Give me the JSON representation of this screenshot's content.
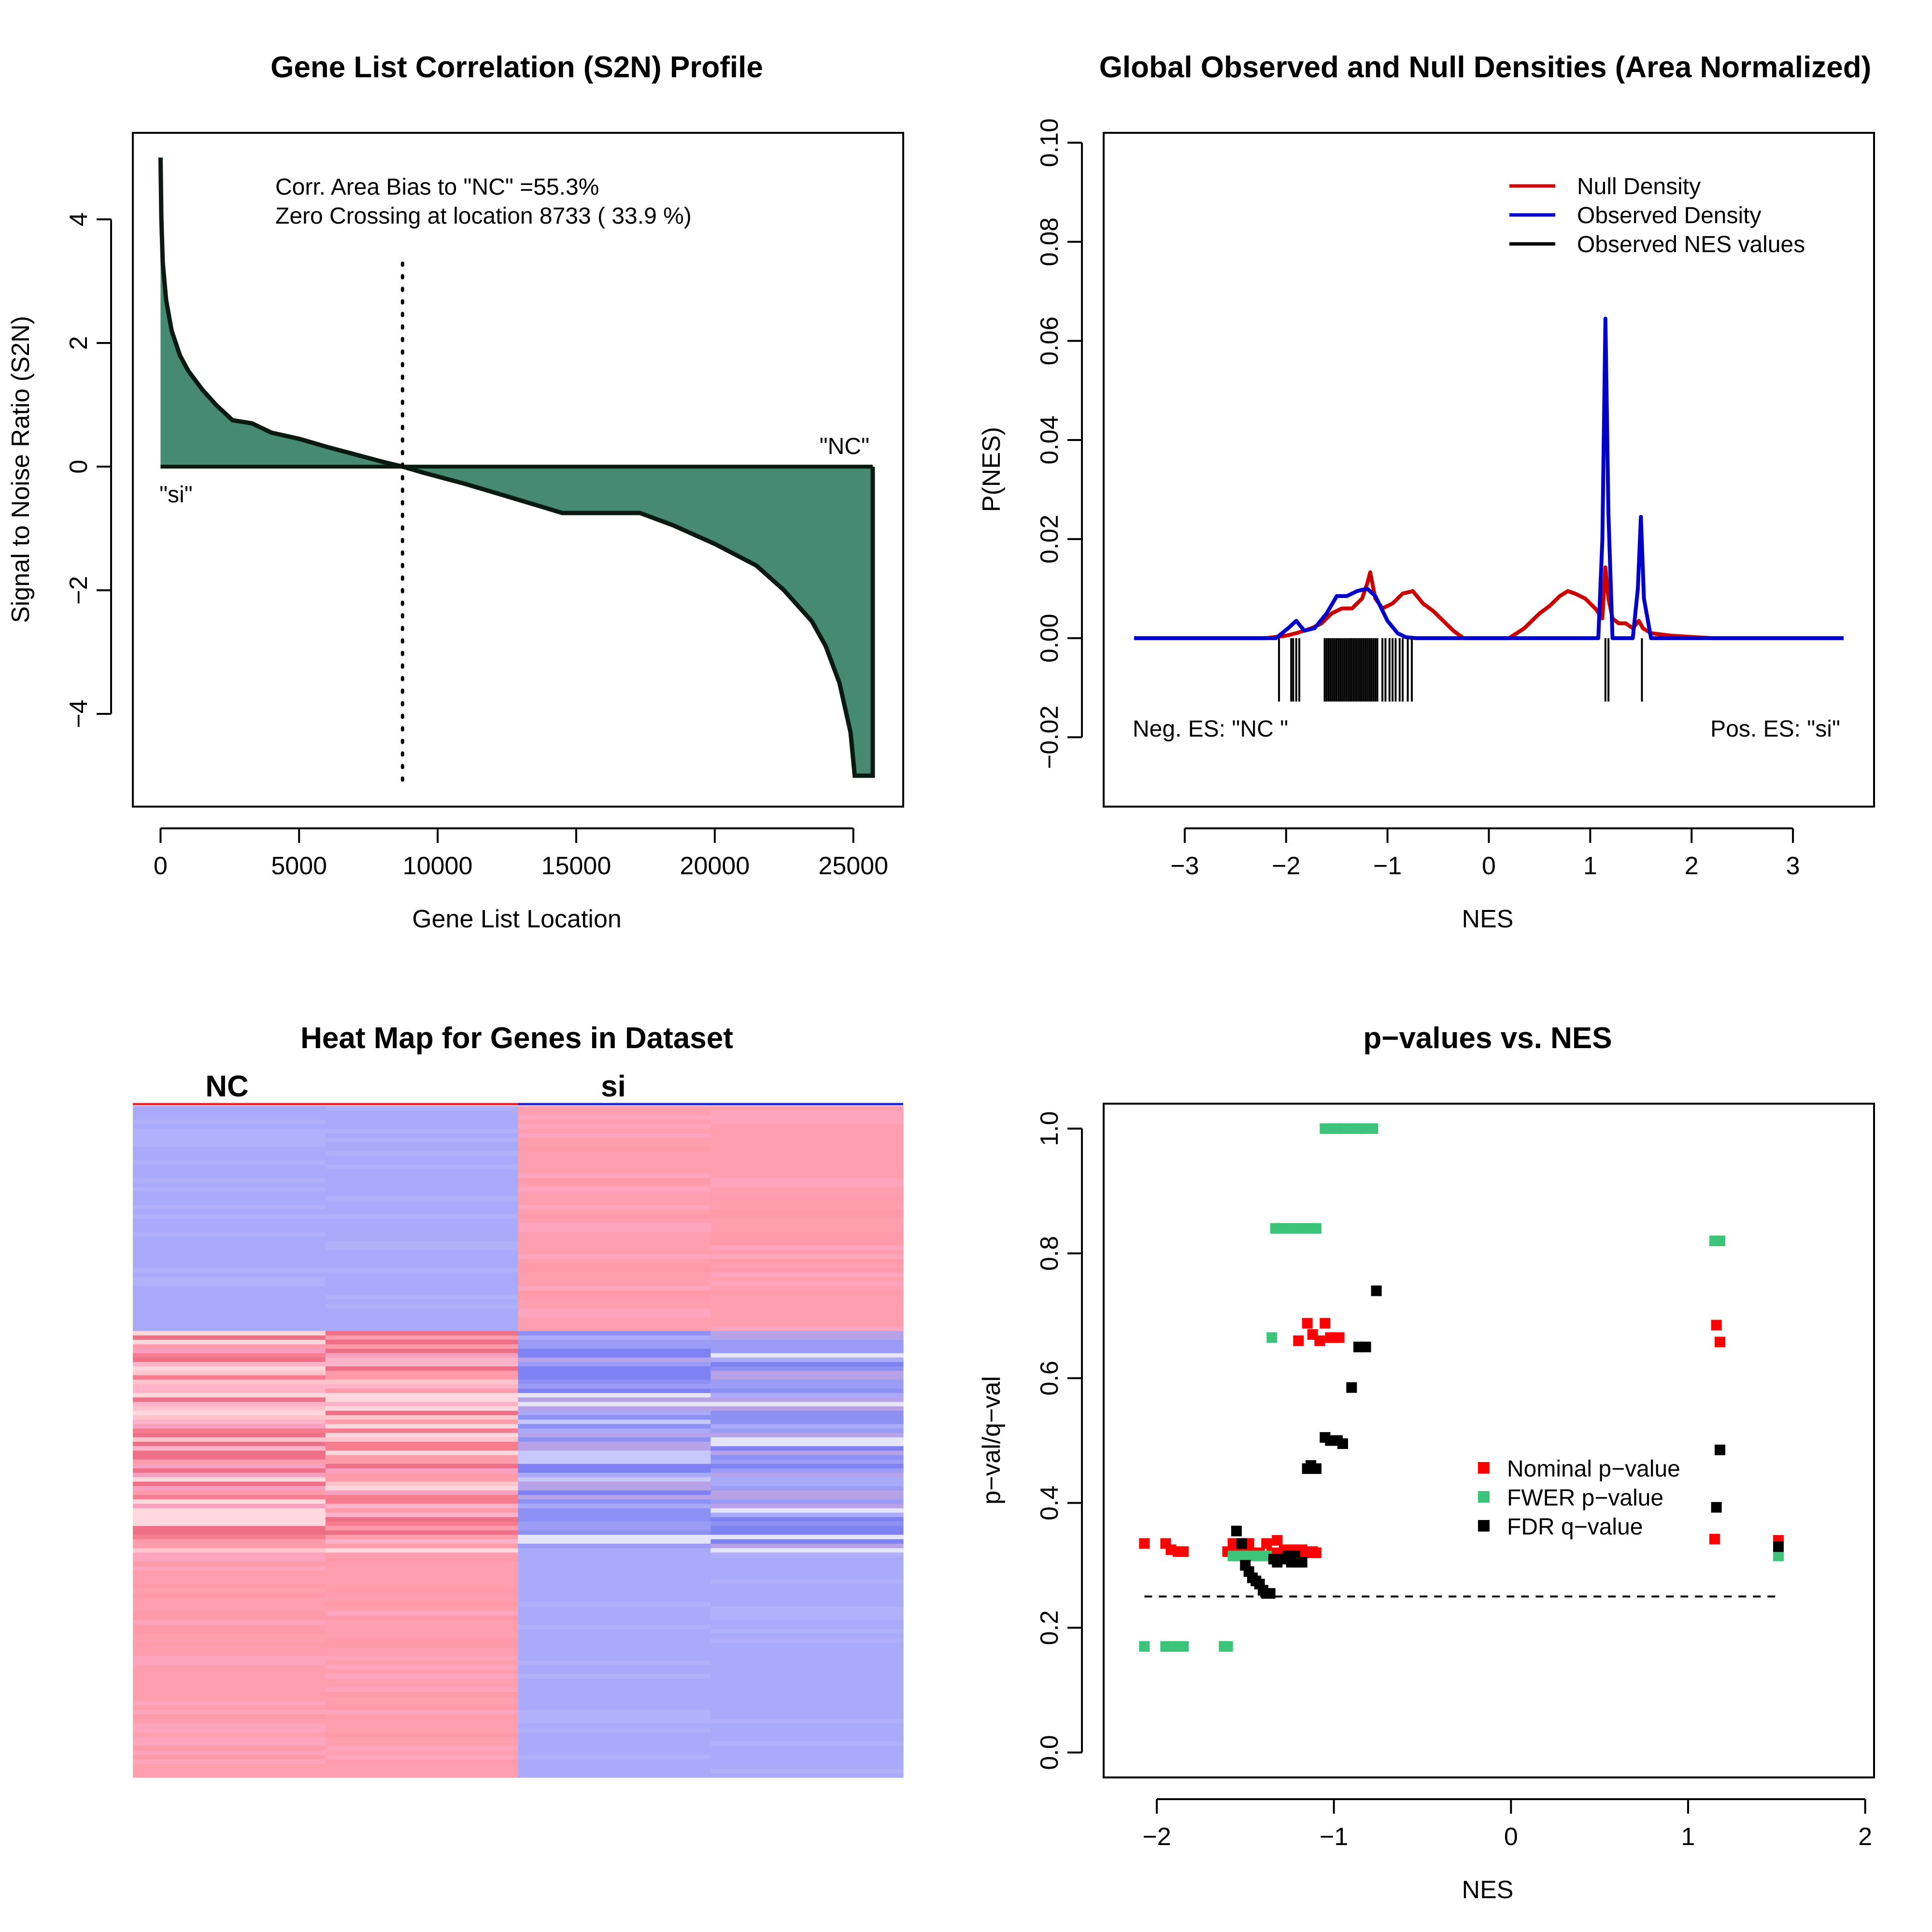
{
  "chart_data": [
    {
      "id": "corr",
      "type": "area",
      "title": "Gene List Correlation (S2N) Profile",
      "xlabel": "Gene List Location",
      "ylabel": "Signal to Noise Ratio (S2N)",
      "xlim": [
        -1000,
        26800
      ],
      "ylim": [
        -5.5,
        5.4
      ],
      "xticks": [
        0,
        5000,
        10000,
        15000,
        20000,
        25000
      ],
      "xtick_labels": [
        "0",
        "5000",
        "10000",
        "15000",
        "20000",
        "25000"
      ],
      "yticks": [
        -4,
        -2,
        0,
        2,
        4
      ],
      "ytick_labels": [
        "−4",
        "−2",
        "0",
        "2",
        "4"
      ],
      "series": [
        {
          "x": [
            0,
            30,
            80,
            200,
            400,
            700,
            1000,
            1500,
            2000,
            2600,
            3300,
            4000,
            5000,
            6000,
            7000,
            8000,
            8733,
            9500,
            11000,
            12500,
            14500,
            17300,
            18500,
            20000,
            21500,
            22500,
            23500,
            24000,
            24500,
            24900,
            25050,
            25200,
            25700
          ],
          "y": [
            5.0,
            4.0,
            3.3,
            2.7,
            2.2,
            1.8,
            1.55,
            1.25,
            1.0,
            0.75,
            0.7,
            0.55,
            0.45,
            0.32,
            0.2,
            0.08,
            0.0,
            -0.1,
            -0.28,
            -0.48,
            -0.75,
            -0.75,
            -0.95,
            -1.25,
            -1.6,
            -2.0,
            -2.5,
            -2.9,
            -3.5,
            -4.3,
            -5.0,
            -5.0,
            -5.0
          ]
        }
      ],
      "zero_crossing": 8733,
      "annotations": [
        "Corr. Area Bias to \"NC\" =55.3%",
        "Zero Crossing at location  8733  ( 33.9  %)"
      ],
      "left_label": "\"si\"",
      "right_label": "\"NC\"",
      "fill_color": "#468a73"
    },
    {
      "id": "dens",
      "type": "line",
      "title": "Global Observed and Null Densities (Area Normalized)",
      "xlabel": "NES",
      "ylabel": "P(NES)",
      "xlim": [
        -3.8,
        3.8
      ],
      "ylim": [
        -0.034,
        0.102
      ],
      "xticks": [
        -3,
        -2,
        -1,
        0,
        1,
        2,
        3
      ],
      "xtick_labels": [
        "−3",
        "−2",
        "−1",
        "0",
        "1",
        "2",
        "3"
      ],
      "yticks": [
        -0.02,
        0.0,
        0.02,
        0.04,
        0.06,
        0.08,
        0.1
      ],
      "ytick_labels": [
        "−0.02",
        "0.00",
        "0.02",
        "0.04",
        "0.06",
        "0.08",
        "0.10"
      ],
      "legend": [
        "Null Density",
        "Observed Density",
        "Observed NES values"
      ],
      "legend_colors": [
        "#cc0000",
        "#0000cc",
        "#000000"
      ],
      "series": [
        {
          "name": "Null Density",
          "color": "#cc0000",
          "x": [
            -3.5,
            -2.2,
            -2.0,
            -1.9,
            -1.75,
            -1.65,
            -1.55,
            -1.45,
            -1.35,
            -1.25,
            -1.2,
            -1.17,
            -1.12,
            -1.05,
            -0.95,
            -0.85,
            -0.75,
            -0.65,
            -0.55,
            -0.45,
            -0.35,
            -0.25,
            0.2,
            0.35,
            0.5,
            0.6,
            0.7,
            0.78,
            0.85,
            0.95,
            1.05,
            1.12,
            1.15,
            1.18,
            1.22,
            1.28,
            1.35,
            1.42,
            1.48,
            1.52,
            1.6,
            1.8,
            2.2,
            3.5
          ],
          "y": [
            0,
            0,
            0.0005,
            0.001,
            0.002,
            0.003,
            0.005,
            0.006,
            0.006,
            0.008,
            0.011,
            0.0133,
            0.008,
            0.006,
            0.007,
            0.009,
            0.0095,
            0.007,
            0.0055,
            0.0035,
            0.0015,
            0,
            0,
            0.002,
            0.005,
            0.0065,
            0.0085,
            0.0095,
            0.009,
            0.008,
            0.006,
            0.004,
            0.0143,
            0.008,
            0.004,
            0.003,
            0.003,
            0.002,
            0.0035,
            0.002,
            0.001,
            0.0005,
            0,
            0
          ]
        },
        {
          "name": "Observed Density",
          "color": "#0000cc",
          "x": [
            -3.5,
            -2.1,
            -1.98,
            -1.9,
            -1.82,
            -1.72,
            -1.6,
            -1.5,
            -1.4,
            -1.3,
            -1.2,
            -1.12,
            -1.0,
            -0.9,
            -0.82,
            -0.72,
            1.08,
            1.12,
            1.15,
            1.18,
            1.22,
            1.3,
            1.42,
            1.47,
            1.5,
            1.53,
            1.6,
            3.5
          ],
          "y": [
            0,
            0,
            0.002,
            0.0035,
            0.0015,
            0.002,
            0.005,
            0.0085,
            0.0085,
            0.0095,
            0.01,
            0.0085,
            0.0035,
            0.001,
            0.0002,
            0,
            0,
            0.02,
            0.0645,
            0.025,
            0,
            0,
            0,
            0.01,
            0.0245,
            0.008,
            0,
            0
          ]
        }
      ],
      "observed_nes": [
        -2.07,
        -1.95,
        -1.93,
        -1.9,
        -1.87,
        -1.62,
        -1.6,
        -1.58,
        -1.56,
        -1.54,
        -1.52,
        -1.5,
        -1.48,
        -1.46,
        -1.44,
        -1.42,
        -1.4,
        -1.38,
        -1.36,
        -1.34,
        -1.32,
        -1.3,
        -1.28,
        -1.26,
        -1.24,
        -1.22,
        -1.2,
        -1.18,
        -1.16,
        -1.14,
        -1.12,
        -1.1,
        -1.05,
        -1.02,
        -0.98,
        -0.95,
        -0.92,
        -0.88,
        -0.85,
        -0.8,
        -0.76,
        1.15,
        1.18,
        1.51
      ],
      "left_note": "Neg. ES: \"NC \"",
      "right_note": "Pos. ES: \"si\""
    },
    {
      "id": "heat",
      "type": "heatmap",
      "title": "Heat Map for Genes in Dataset",
      "groups": [
        "NC",
        "si"
      ],
      "group_colors": [
        "#e8262b",
        "#2226cc"
      ],
      "columns": 4,
      "blocks": [
        {
          "rows": 50,
          "col_colors": [
            "blue",
            "blue",
            "red",
            "red"
          ]
        },
        {
          "rows": 50,
          "col_colors": [
            "red",
            "red",
            "blue",
            "blue"
          ]
        },
        {
          "rows": 50,
          "col_colors": [
            "red",
            "red",
            "blue",
            "blue"
          ]
        }
      ]
    },
    {
      "id": "pval",
      "type": "scatter",
      "title": "p−values vs. NES",
      "xlabel": "NES",
      "ylabel": "p−val/q−val",
      "xlim": [
        -2.3,
        2.05
      ],
      "ylim": [
        -0.04,
        1.04
      ],
      "xticks": [
        -2,
        -1,
        0,
        1,
        2
      ],
      "xtick_labels": [
        "−2",
        "−1",
        "0",
        "1",
        "2"
      ],
      "yticks": [
        0.0,
        0.2,
        0.4,
        0.6,
        0.8,
        1.0
      ],
      "ytick_labels": [
        "0.0",
        "0.2",
        "0.4",
        "0.6",
        "0.8",
        "1.0"
      ],
      "threshold": 0.25,
      "threshold_range": [
        -2.07,
        1.51
      ],
      "legend": [
        "Nominal p−value",
        "FWER p−value",
        "FDR q−value"
      ],
      "series": [
        {
          "name": "Nominal p−value",
          "color": "#ff0000",
          "x": [
            -2.07,
            -1.95,
            -1.92,
            -1.88,
            -1.85,
            -1.6,
            -1.57,
            -1.55,
            -1.52,
            -1.5,
            -1.48,
            -1.45,
            -1.42,
            -1.38,
            -1.35,
            -1.32,
            -1.3,
            -1.28,
            -1.25,
            -1.22,
            -1.2,
            -1.18,
            -1.15,
            -1.12,
            -1.1,
            -1.2,
            -1.15,
            -1.12,
            -1.08,
            -1.05,
            -1.02,
            -1.0,
            -0.97,
            1.15,
            1.16,
            1.18,
            1.51
          ],
          "y": [
            0.335,
            0.335,
            0.325,
            0.322,
            0.322,
            0.322,
            0.335,
            0.32,
            0.335,
            0.325,
            0.335,
            0.32,
            0.32,
            0.335,
            0.32,
            0.34,
            0.32,
            0.325,
            0.32,
            0.325,
            0.32,
            0.325,
            0.32,
            0.322,
            0.32,
            0.66,
            0.688,
            0.67,
            0.66,
            0.688,
            0.665,
            0.665,
            0.665,
            0.342,
            0.685,
            0.658,
            0.34
          ]
        },
        {
          "name": "FWER p−value",
          "color": "#3cc47a",
          "x": [
            -2.07,
            -1.95,
            -1.92,
            -1.88,
            -1.85,
            -1.62,
            -1.6,
            -1.57,
            -1.55,
            -1.52,
            -1.5,
            -1.47,
            -1.45,
            -1.42,
            -1.4,
            -1.38,
            -1.35,
            -1.33,
            -1.3,
            -1.27,
            -1.24,
            -1.22,
            -1.19,
            -1.16,
            -1.13,
            -1.1,
            -1.05,
            -1.02,
            -0.98,
            -0.95,
            -0.9,
            -0.86,
            -0.82,
            -0.78,
            1.15,
            1.18,
            1.51
          ],
          "y": [
            0.17,
            0.17,
            0.17,
            0.17,
            0.17,
            0.17,
            0.17,
            0.315,
            0.315,
            0.315,
            0.315,
            0.315,
            0.315,
            0.315,
            0.315,
            0.315,
            0.665,
            0.84,
            0.84,
            0.84,
            0.84,
            0.84,
            0.84,
            0.84,
            0.84,
            0.84,
            1.0,
            1.0,
            1.0,
            1.0,
            1.0,
            1.0,
            1.0,
            1.0,
            0.82,
            0.82,
            0.315
          ]
        },
        {
          "name": "FDR q−value",
          "color": "#000000",
          "x": [
            -1.55,
            -1.52,
            -1.5,
            -1.48,
            -1.46,
            -1.44,
            -1.42,
            -1.4,
            -1.38,
            -1.36,
            -1.34,
            -1.32,
            -1.3,
            -1.28,
            -1.26,
            -1.24,
            -1.22,
            -1.2,
            -1.18,
            -1.15,
            -1.13,
            -1.1,
            -1.05,
            -1.02,
            -0.98,
            -0.95,
            -0.9,
            -0.86,
            -0.82,
            -0.76,
            1.16,
            1.18,
            1.51
          ],
          "y": [
            0.355,
            0.335,
            0.3,
            0.29,
            0.28,
            0.275,
            0.27,
            0.26,
            0.255,
            0.255,
            0.31,
            0.305,
            0.31,
            0.31,
            0.315,
            0.305,
            0.315,
            0.305,
            0.305,
            0.455,
            0.46,
            0.455,
            0.505,
            0.5,
            0.5,
            0.495,
            0.585,
            0.65,
            0.65,
            0.74,
            0.393,
            0.485,
            0.33
          ]
        }
      ]
    }
  ]
}
